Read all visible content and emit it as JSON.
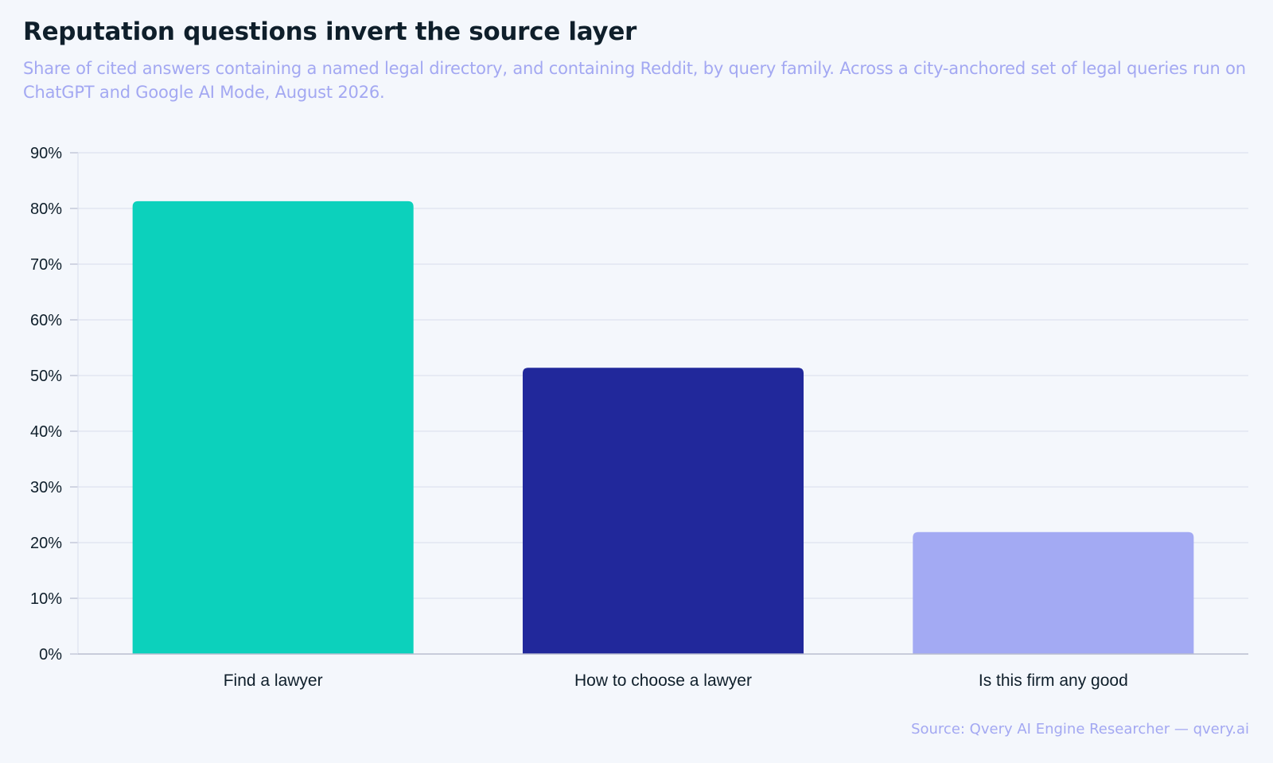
{
  "chart_data": {
    "type": "bar",
    "title": "Reputation questions invert the source layer",
    "subtitle": "Share of cited answers containing a named legal directory, and containing Reddit, by query family. Across a city-anchored set of legal queries run on ChatGPT and Google AI Mode, August 2026.",
    "source": "Source: Qvery AI Engine Researcher — qvery.ai",
    "categories": [
      "Find a lawyer",
      "How to choose a lawyer",
      "Is this firm any good"
    ],
    "values": [
      81.3,
      51.4,
      21.9
    ],
    "colors": [
      "#0cd1bc",
      "#21289b",
      "#a3aaf3"
    ],
    "ylim": [
      0,
      90
    ],
    "yticks": [
      0,
      10,
      20,
      30,
      40,
      50,
      60,
      70,
      80,
      90
    ],
    "ytick_labels": [
      "0%",
      "10%",
      "20%",
      "30%",
      "40%",
      "50%",
      "60%",
      "70%",
      "80%",
      "90%"
    ],
    "grid": true,
    "gridline_color": "#dde1ef",
    "axis_color": "#b9bdd0"
  }
}
